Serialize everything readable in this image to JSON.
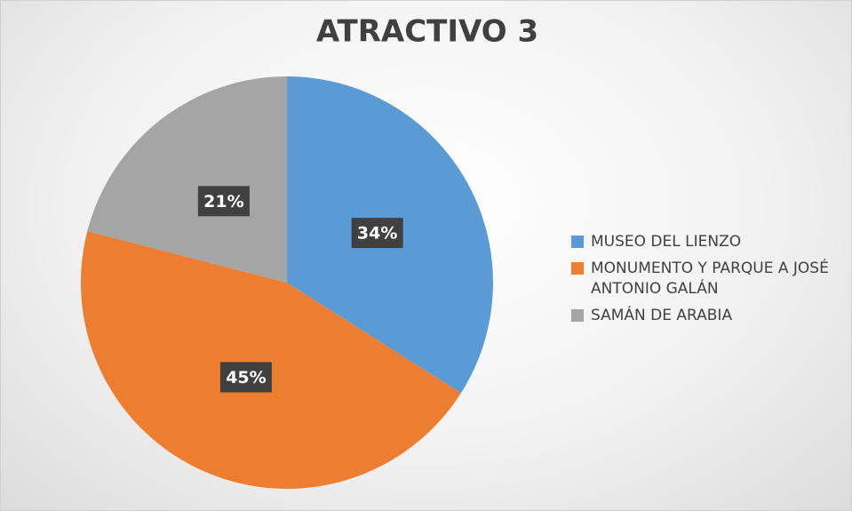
{
  "chart_data": {
    "type": "pie",
    "title": "ATRACTIVO 3",
    "categories": [
      "MUSEO DEL LIENZO",
      "MONUMENTO Y PARQUE A JOSÉ ANTONIO GALÁN",
      "SAMÁN DE ARABIA"
    ],
    "values": [
      34,
      45,
      21
    ],
    "value_labels": [
      "34%",
      "45%",
      "21%"
    ],
    "colors": [
      "#5b9bd5",
      "#ed7d31",
      "#a5a5a5"
    ],
    "legend": "right"
  }
}
